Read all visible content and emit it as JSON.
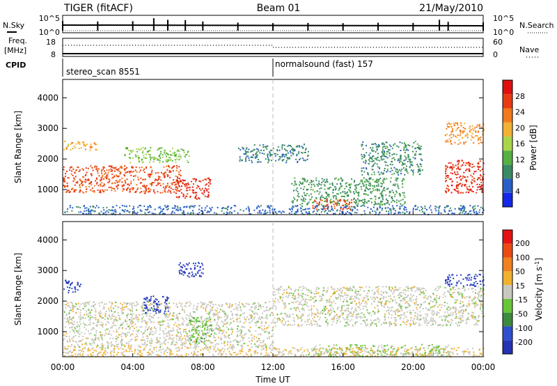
{
  "header": {
    "radar": "TIGER (fitACF)",
    "beam": "Beam 01",
    "date": "21/May/2010"
  },
  "top_panels": {
    "nsky_label": "N.Sky",
    "nsearch_label": "N.Search",
    "freq_label": "Freq.",
    "freq_unit": "[MHz]",
    "nave_label": "Nave",
    "cpid_label": "CPID",
    "count_axis_top": "10^5",
    "count_axis_bottom": "10^0",
    "freq_axis_top": "18",
    "freq_axis_bottom": "8",
    "nave_axis_top": "60",
    "nave_axis_bottom": "0",
    "cpid_segments": [
      {
        "label": "stereo_scan 8551",
        "start_hour": 0
      },
      {
        "label": "normalsound (fast) 157",
        "start_hour": 12
      }
    ]
  },
  "x_axis": {
    "label": "Time UT",
    "ticks": [
      "00:00",
      "04:00",
      "08:00",
      "12:00",
      "16:00",
      "20:00",
      "00:00"
    ]
  },
  "colors": {
    "power_scale": [
      "#1428e6",
      "#2a5fc8",
      "#3b8a64",
      "#57b043",
      "#a8d64a",
      "#f2b035",
      "#f07a1c",
      "#e83a12",
      "#e01010"
    ],
    "velocity_scale": [
      "#2432b4",
      "#2f4fcf",
      "#3e8a3e",
      "#6ac43a",
      "#c8c8c0",
      "#f0b030",
      "#f08020",
      "#ec4a14",
      "#e41212"
    ]
  },
  "chart_data": [
    {
      "type": "line",
      "panel": "n_sky_n_search",
      "x_unit": "hours UT",
      "x": [
        0,
        2,
        4,
        5.2,
        6,
        7,
        8,
        10,
        12,
        14,
        16,
        18,
        20,
        21.5,
        22,
        24
      ],
      "series": [
        {
          "name": "N.Sky",
          "values": [
            3000,
            2000,
            2500,
            30000,
            8000,
            6000,
            2000,
            800,
            500,
            600,
            500,
            700,
            600,
            8000,
            1500,
            1000
          ]
        },
        {
          "name": "N.Search",
          "values": [
            1,
            1,
            1,
            1,
            1,
            1,
            1,
            1,
            1,
            1,
            1,
            1,
            1,
            1,
            1,
            1
          ]
        }
      ],
      "ylim": [
        1,
        100000
      ],
      "yscale": "log"
    },
    {
      "type": "line",
      "panel": "frequency_nave",
      "x_unit": "hours UT",
      "x": [
        0,
        12,
        12,
        24
      ],
      "series": [
        {
          "name": "Freq.",
          "values": [
            9,
            9,
            9,
            9
          ]
        },
        {
          "name": "Nave",
          "values": [
            45,
            45,
            38,
            38
          ]
        }
      ]
    },
    {
      "type": "heatmap",
      "title": "",
      "xlabel": "Time UT",
      "ylabel": "Slant Range [km]",
      "xlim": [
        0,
        24
      ],
      "ylim": [
        180,
        4600
      ],
      "yticks": [
        1000,
        2000,
        3000,
        4000
      ],
      "colorbar": {
        "label": "Power [dB]",
        "ticks": [
          4,
          8,
          12,
          16,
          20,
          24,
          28
        ],
        "range": [
          0,
          32
        ]
      },
      "features": [
        {
          "t": [
            0,
            2
          ],
          "r": [
            2300,
            2600
          ],
          "value": 20
        },
        {
          "t": [
            0,
            6.8
          ],
          "r": [
            900,
            1800
          ],
          "value": 26
        },
        {
          "t": [
            3.5,
            7.2
          ],
          "r": [
            1900,
            2400
          ],
          "value": 14
        },
        {
          "t": [
            6.4,
            8.4
          ],
          "r": [
            700,
            1400
          ],
          "value": 28
        },
        {
          "t": [
            10,
            14
          ],
          "r": [
            1900,
            2500
          ],
          "value": 8
        },
        {
          "t": [
            13,
            19.5
          ],
          "r": [
            500,
            1400
          ],
          "value": 10
        },
        {
          "t": [
            14.2,
            16.5
          ],
          "r": [
            350,
            700
          ],
          "value": 26
        },
        {
          "t": [
            17,
            20.5
          ],
          "r": [
            1500,
            2600
          ],
          "value": 9
        },
        {
          "t": [
            21.8,
            24
          ],
          "r": [
            900,
            2000
          ],
          "value": 28
        },
        {
          "t": [
            21.8,
            24
          ],
          "r": [
            2500,
            3200
          ],
          "value": 22
        },
        {
          "t": [
            0,
            24
          ],
          "r": [
            200,
            500
          ],
          "value": 6
        }
      ]
    },
    {
      "type": "heatmap",
      "title": "",
      "xlabel": "Time UT",
      "ylabel": "Slant Range [km]",
      "xlim": [
        0,
        24
      ],
      "ylim": [
        180,
        4600
      ],
      "yticks": [
        1000,
        2000,
        3000,
        4000
      ],
      "colorbar": {
        "label": "Velocity [m s^-1]",
        "ticks": [
          200,
          100,
          50,
          15,
          -15,
          -50,
          -100,
          -200
        ],
        "range": [
          -250,
          250
        ]
      },
      "features": [
        {
          "t": [
            0,
            1
          ],
          "r": [
            2300,
            2700
          ],
          "value": -200
        },
        {
          "t": [
            0,
            12
          ],
          "r": [
            500,
            2000
          ],
          "value": 0
        },
        {
          "t": [
            4.5,
            6
          ],
          "r": [
            1600,
            2200
          ],
          "value": -200
        },
        {
          "t": [
            6.5,
            8
          ],
          "r": [
            2800,
            3300
          ],
          "value": -200
        },
        {
          "t": [
            7.2,
            8.5
          ],
          "r": [
            600,
            1500
          ],
          "value": -60
        },
        {
          "t": [
            12,
            24
          ],
          "r": [
            1200,
            2500
          ],
          "value": 0
        },
        {
          "t": [
            14,
            22
          ],
          "r": [
            200,
            600
          ],
          "value": -40
        },
        {
          "t": [
            21.8,
            24
          ],
          "r": [
            2500,
            2900
          ],
          "value": -200
        },
        {
          "t": [
            0,
            24
          ],
          "r": [
            200,
            500
          ],
          "value": 30
        }
      ]
    }
  ]
}
